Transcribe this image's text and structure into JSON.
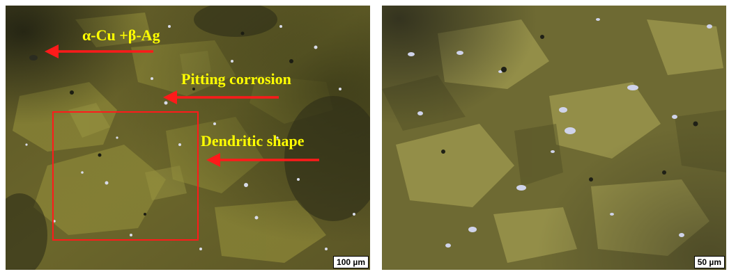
{
  "left_panel": {
    "annotations": {
      "phase": "α-Cu +β-Ag",
      "pitting": "Pitting corrosion",
      "dendritic": "Dendritic shape"
    },
    "scale_bar": "100 µm"
  },
  "right_panel": {
    "scale_bar": "50 µm"
  },
  "colors": {
    "annotation_text": "#ffff00",
    "arrow": "#ff1a1a",
    "roi_box": "#ff1a1a"
  }
}
